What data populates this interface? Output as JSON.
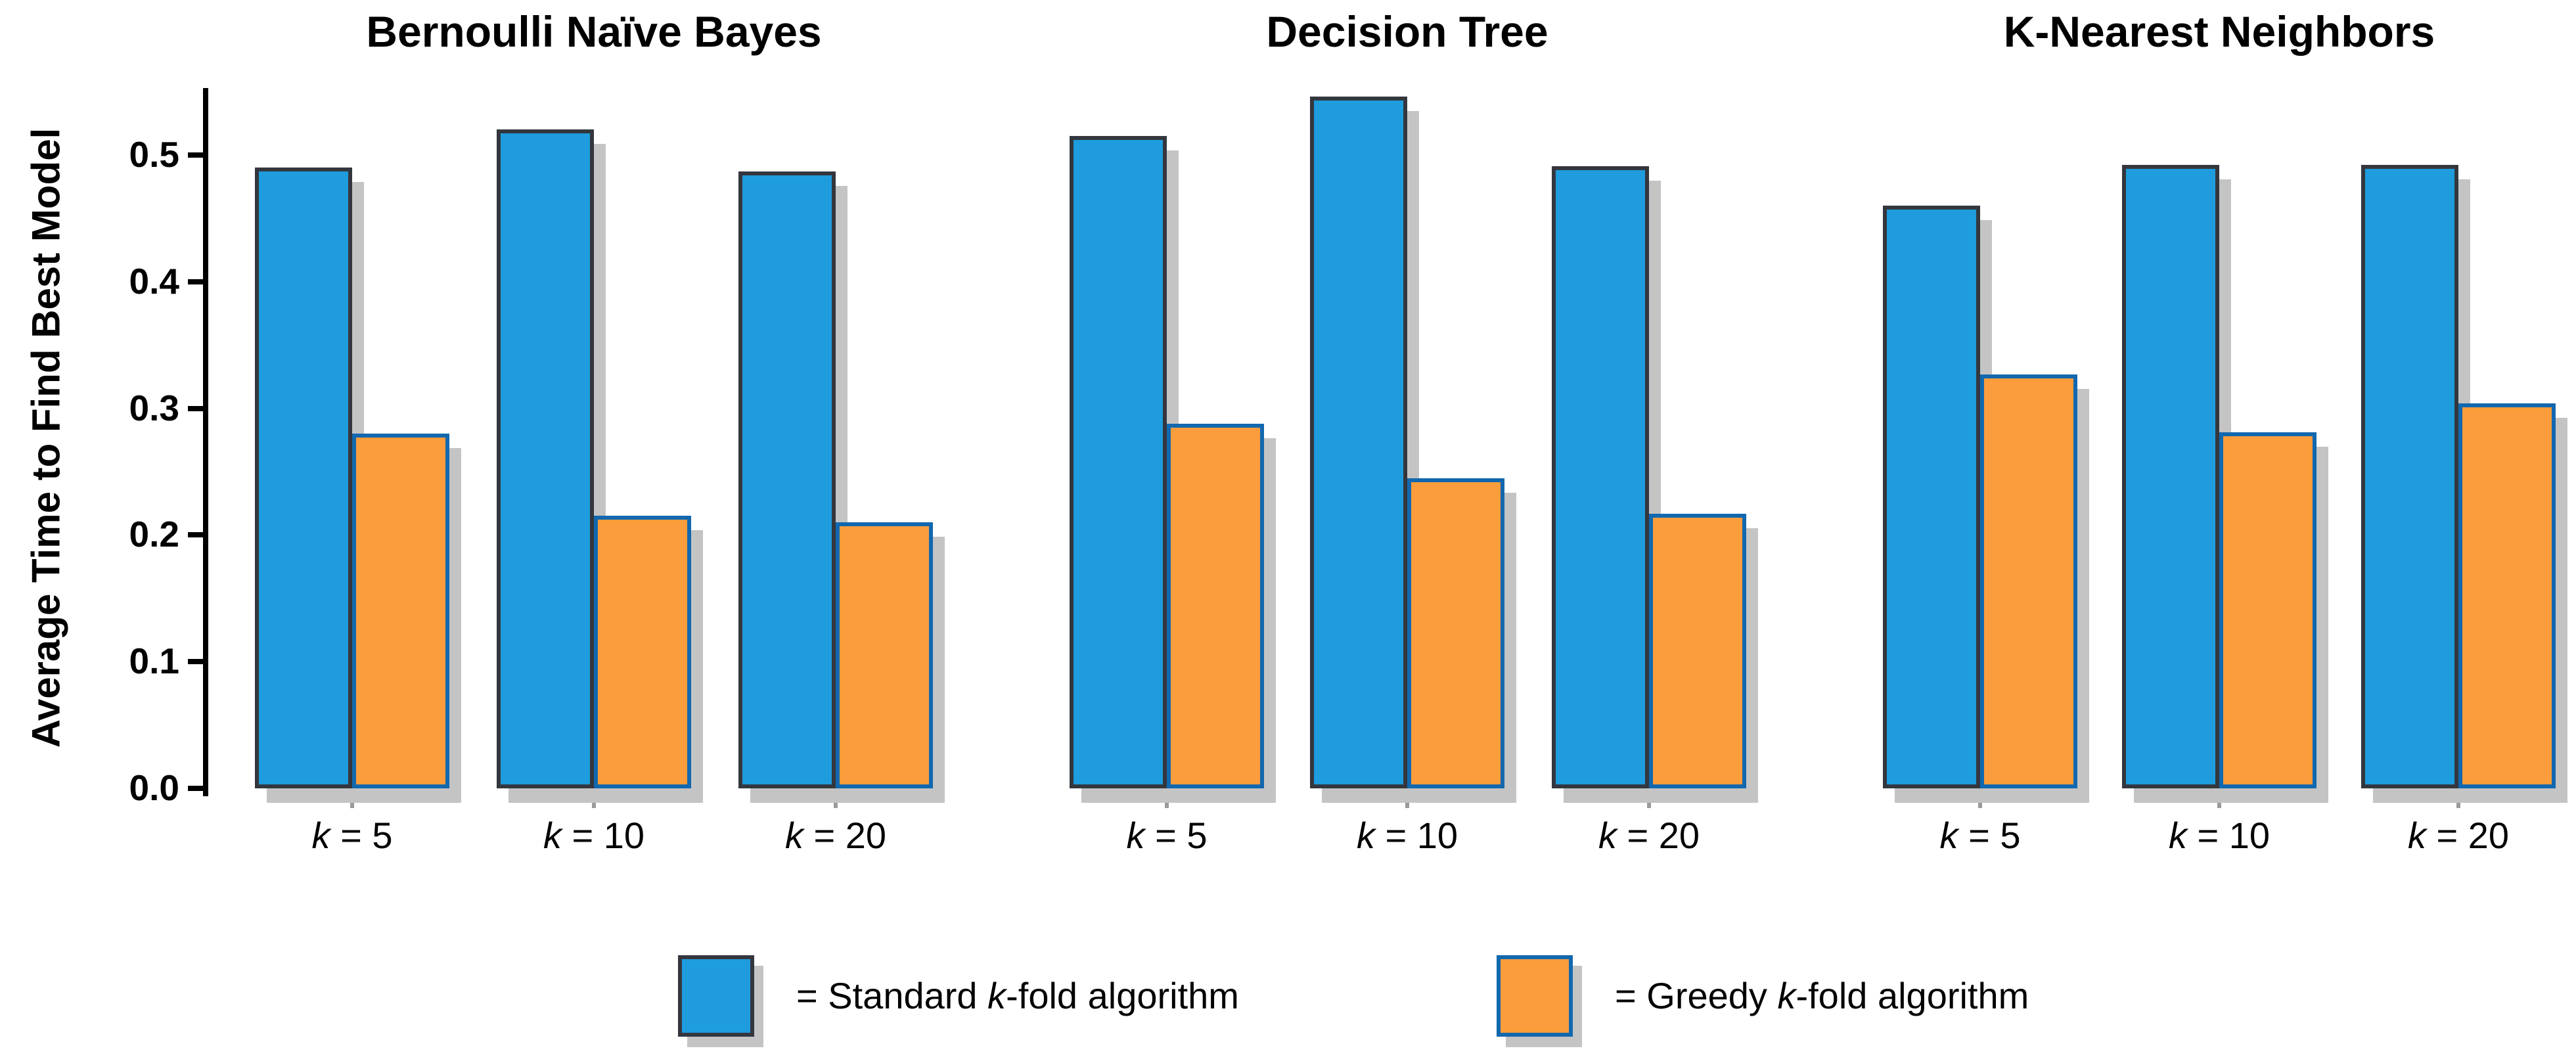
{
  "chart_data": {
    "type": "bar",
    "title": "",
    "ylabel": "Average Time to Find Best Model",
    "ylim": [
      0,
      0.55
    ],
    "ytick_values": [
      0.0,
      0.1,
      0.2,
      0.3,
      0.4,
      0.5
    ],
    "ytick_labels": [
      "0.0",
      "0.1",
      "0.2",
      "0.3",
      "0.4",
      "0.5"
    ],
    "categories": [
      "k = 5",
      "k = 10",
      "k = 20"
    ],
    "category_parts": [
      {
        "it": "k",
        "rest": " = 5"
      },
      {
        "it": "k",
        "rest": " = 10"
      },
      {
        "it": "k",
        "rest": " = 20"
      }
    ],
    "grid": false,
    "legend_position": "bottom",
    "panels": [
      {
        "title": "Bernoulli Naïve Bayes",
        "series": [
          {
            "name": "Standard k-fold algorithm",
            "values": [
              0.49,
              0.52,
              0.487
            ]
          },
          {
            "name": "Greedy k-fold algorithm",
            "values": [
              0.28,
              0.215,
              0.21
            ]
          }
        ]
      },
      {
        "title": "Decision Tree",
        "series": [
          {
            "name": "Standard k-fold algorithm",
            "values": [
              0.515,
              0.546,
              0.491
            ]
          },
          {
            "name": "Greedy k-fold algorithm",
            "values": [
              0.288,
              0.245,
              0.217
            ]
          }
        ]
      },
      {
        "title": "K-Nearest Neighbors",
        "series": [
          {
            "name": "Standard k-fold algorithm",
            "values": [
              0.46,
              0.492,
              0.492
            ]
          },
          {
            "name": "Greedy k-fold algorithm",
            "values": [
              0.327,
              0.281,
              0.304
            ]
          }
        ]
      }
    ],
    "legend": [
      {
        "pre": "= Standard ",
        "it": "k",
        "post": "-fold algorithm"
      },
      {
        "pre": "= Greedy ",
        "it": "k",
        "post": "-fold algorithm"
      }
    ]
  },
  "colors": {
    "standard_fill": "#1e9cdd",
    "standard_border": "#33373d",
    "greedy_fill": "#fb9d3c",
    "greedy_border": "#1268ae",
    "shadow": "#c4c4c4",
    "axis": "#000000",
    "xtick": "#9a9a9a"
  }
}
